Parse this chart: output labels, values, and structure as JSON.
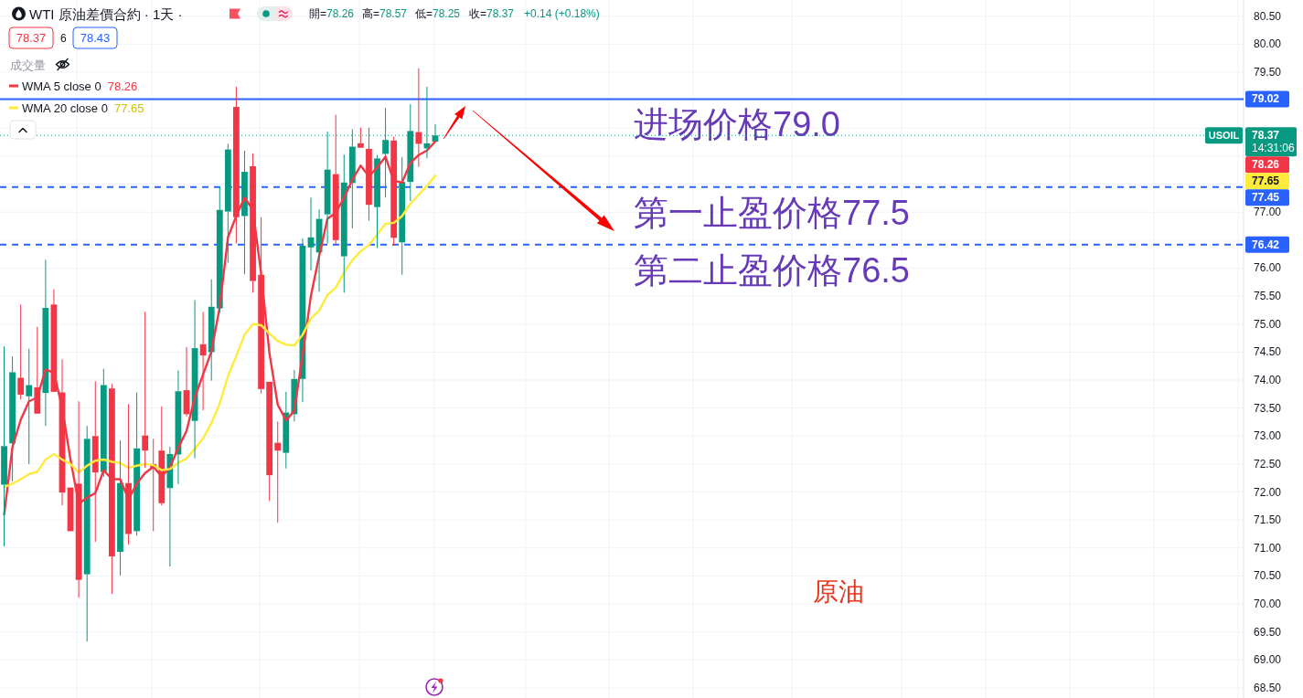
{
  "chart_data": {
    "type": "candlestick",
    "title": "WTI 原油差價合約 · 1天 ·",
    "categories": [
      null,
      null,
      null,
      null,
      null,
      null,
      null,
      null,
      null,
      null,
      null,
      null,
      null,
      null,
      null,
      null,
      null,
      null,
      null,
      null,
      null,
      null,
      null,
      null,
      null,
      null,
      null,
      null,
      null,
      null,
      null,
      null,
      null,
      null,
      null,
      null,
      null,
      null,
      null,
      null,
      null,
      null,
      null,
      null,
      null,
      null,
      null,
      null,
      null,
      null,
      null,
      null,
      null,
      null,
      null,
      null,
      null,
      null,
      null,
      null,
      null,
      null,
      null,
      null,
      null,
      null,
      null,
      null,
      null,
      null,
      null,
      null,
      null,
      null,
      null,
      null,
      null,
      null,
      null,
      null,
      null,
      null,
      null,
      null,
      null,
      null,
      null,
      null,
      null,
      null,
      null,
      null,
      null,
      null,
      null,
      null,
      null,
      null,
      null,
      null,
      null,
      null,
      null,
      null,
      null,
      null,
      null,
      null,
      null,
      null,
      null,
      null,
      null,
      null,
      null,
      null,
      null,
      null,
      null,
      null,
      null,
      null,
      null,
      null,
      null,
      null,
      null,
      null,
      null,
      null,
      null,
      null,
      null,
      null,
      null,
      null,
      null,
      null,
      null,
      null,
      null,
      null,
      null,
      null,
      null,
      null,
      null,
      null,
      null,
      null
    ],
    "ohlc": [
      [
        72.13,
        74.6,
        71.03,
        72.82
      ],
      [
        72.87,
        74.42,
        72.19,
        74.14
      ],
      [
        74.04,
        75.35,
        73.65,
        73.74
      ],
      [
        73.71,
        74.56,
        72.5,
        73.91
      ],
      [
        73.87,
        74.95,
        73.4,
        73.4
      ],
      [
        73.77,
        76.15,
        73.18,
        75.29
      ],
      [
        75.35,
        75.62,
        73.79,
        73.79
      ],
      [
        73.78,
        74.37,
        71.76,
        71.99
      ],
      [
        72.08,
        72.08,
        71.3,
        71.3
      ],
      [
        72.15,
        73.62,
        70.11,
        70.43
      ],
      [
        70.53,
        73.18,
        69.33,
        72.95
      ],
      [
        73.0,
        73.98,
        71.11,
        72.35
      ],
      [
        72.36,
        74.2,
        72.27,
        73.91
      ],
      [
        73.85,
        73.93,
        70.18,
        70.85
      ],
      [
        70.93,
        72.92,
        70.51,
        72.16
      ],
      [
        72.16,
        73.57,
        71.06,
        71.25
      ],
      [
        71.3,
        73.78,
        71.22,
        72.78
      ],
      [
        73.01,
        75.22,
        72.43,
        72.74
      ],
      [
        72.5,
        72.95,
        71.3,
        72.42
      ],
      [
        72.74,
        73.53,
        71.76,
        71.8
      ],
      [
        72.07,
        72.81,
        70.67,
        72.68
      ],
      [
        72.67,
        74.17,
        72.14,
        73.8
      ],
      [
        73.82,
        74.59,
        73.35,
        73.39
      ],
      [
        73.27,
        75.43,
        72.6,
        74.57
      ],
      [
        74.64,
        75.22,
        73.46,
        74.44
      ],
      [
        74.5,
        75.8,
        73.99,
        75.31
      ],
      [
        75.28,
        77.46,
        75.2,
        77.04
      ],
      [
        77.01,
        78.22,
        76.1,
        78.12
      ],
      [
        78.88,
        79.24,
        76.44,
        76.91
      ],
      [
        76.93,
        78.1,
        75.89,
        77.72
      ],
      [
        77.82,
        78.05,
        75.56,
        75.77
      ],
      [
        75.88,
        76.91,
        73.76,
        73.84
      ],
      [
        73.97,
        73.97,
        71.84,
        72.3
      ],
      [
        72.88,
        73.26,
        71.45,
        72.74
      ],
      [
        72.7,
        73.79,
        72.42,
        73.42
      ],
      [
        73.39,
        74.18,
        73.26,
        74.02
      ],
      [
        74.02,
        76.53,
        73.61,
        76.4
      ],
      [
        76.37,
        77.26,
        75.96,
        76.55
      ],
      [
        76.28,
        77.05,
        75.58,
        76.88
      ],
      [
        76.96,
        78.44,
        76.44,
        77.76
      ],
      [
        77.68,
        78.74,
        76.41,
        76.5
      ],
      [
        76.21,
        78.03,
        75.56,
        77.53
      ],
      [
        77.52,
        78.48,
        76.71,
        78.17
      ],
      [
        78.23,
        78.51,
        78.15,
        78.15
      ],
      [
        78.13,
        78.51,
        76.85,
        77.13
      ],
      [
        77.09,
        78.02,
        76.36,
        77.96
      ],
      [
        78.04,
        78.86,
        77.26,
        78.29
      ],
      [
        78.28,
        78.35,
        76.4,
        76.54
      ],
      [
        76.46,
        77.98,
        75.88,
        77.54
      ],
      [
        77.54,
        78.93,
        77.2,
        78.45
      ],
      [
        78.43,
        79.57,
        77.81,
        78.22
      ],
      [
        78.14,
        79.24,
        77.96,
        78.23
      ],
      [
        78.26,
        78.57,
        78.25,
        78.37
      ],
      null,
      null,
      null,
      null,
      null,
      null,
      null,
      null,
      null,
      null,
      null,
      null,
      null,
      null,
      null,
      null,
      null,
      null,
      null,
      null,
      null,
      null,
      null,
      null,
      null,
      null,
      null,
      null,
      null,
      null,
      null,
      null,
      null,
      null,
      null,
      null,
      null,
      null,
      null,
      null,
      null,
      null,
      null,
      null,
      null,
      null,
      null,
      null,
      null,
      null,
      null,
      null,
      null,
      null,
      null,
      null,
      null,
      null,
      null,
      null,
      null,
      null,
      null,
      null,
      null,
      null,
      null,
      null,
      null,
      null,
      null,
      null,
      null,
      null,
      null,
      null,
      null,
      null,
      null,
      null,
      null,
      null,
      null,
      null,
      null,
      null,
      null,
      null,
      null,
      null,
      null,
      null,
      null,
      null,
      null,
      null,
      null
    ],
    "colors": [
      "#089981",
      "#089981",
      "#f23645",
      "#089981",
      "#f23645",
      "#089981",
      "#f23645",
      "#f23645",
      "#f23645",
      "#f23645",
      "#089981",
      "#f23645",
      "#089981",
      "#f23645",
      "#089981",
      "#f23645",
      "#089981",
      "#f23645",
      "#f23645",
      "#f23645",
      "#089981",
      "#089981",
      "#f23645",
      "#089981",
      "#f23645",
      "#089981",
      "#089981",
      "#089981",
      "#f23645",
      "#089981",
      "#f23645",
      "#f23645",
      "#f23645",
      "#f23645",
      "#089981",
      "#089981",
      "#089981",
      "#089981",
      "#089981",
      "#089981",
      "#f23645",
      "#089981",
      "#089981",
      "#f23645",
      "#f23645",
      "#089981",
      "#089981",
      "#f23645",
      "#089981",
      "#089981",
      "#f23645",
      "#089981",
      "#089981",
      null,
      null,
      null,
      null,
      null,
      null,
      null,
      null,
      null,
      null,
      null,
      null,
      null,
      null,
      null,
      null,
      null,
      null,
      null,
      null,
      null,
      null,
      null,
      null,
      null,
      null,
      null,
      null,
      null,
      null,
      null,
      null,
      null,
      null,
      null,
      null,
      null,
      null,
      null,
      null,
      null,
      null,
      null,
      null,
      null,
      null,
      null,
      null,
      null,
      null,
      null,
      null,
      null,
      null,
      null,
      null,
      null,
      null,
      null,
      null,
      null,
      null,
      null,
      null,
      null,
      null,
      null,
      null,
      null,
      null,
      null,
      null,
      null,
      null,
      null,
      null,
      null,
      null,
      null,
      null,
      null,
      null,
      null,
      null,
      null,
      null,
      null,
      null,
      null,
      null,
      null,
      null,
      null,
      null,
      null,
      null,
      null
    ],
    "series": [
      {
        "name": "WMA 5 close 0",
        "type": "line",
        "color": "#f23645",
        "values": [
          71.6,
          72.8,
          73.29,
          73.62,
          73.69,
          74.19,
          74.13,
          73.51,
          72.58,
          71.79,
          71.9,
          71.98,
          72.39,
          72.23,
          72.23,
          71.87,
          72.15,
          72.34,
          72.45,
          72.28,
          72.44,
          72.79,
          73.09,
          73.69,
          74.1,
          74.51,
          75.3,
          76.55,
          76.93,
          77.26,
          77.04,
          75.9,
          74.48,
          73.56,
          73.28,
          73.45,
          74.45,
          75.5,
          76.22,
          76.88,
          76.99,
          77.26,
          77.58,
          77.83,
          77.64,
          77.8,
          77.99,
          77.56,
          77.53,
          77.88,
          78.02,
          78.1,
          78.26,
          null,
          null,
          null,
          null,
          null,
          null,
          null,
          null,
          null,
          null,
          null,
          null,
          null,
          null,
          null,
          null,
          null,
          null,
          null,
          null,
          null,
          null,
          null,
          null,
          null,
          null,
          null,
          null,
          null,
          null,
          null,
          null,
          null,
          null,
          null,
          null,
          null,
          null,
          null,
          null,
          null,
          null,
          null,
          null,
          null,
          null,
          null,
          null,
          null,
          null,
          null,
          null,
          null,
          null,
          null,
          null,
          null,
          null,
          null,
          null,
          null,
          null,
          null,
          null,
          null,
          null,
          null,
          null,
          null,
          null,
          null,
          null,
          null,
          null,
          null,
          null,
          null,
          null,
          null,
          null,
          null,
          null,
          null,
          null,
          null,
          null,
          null,
          null,
          null,
          null,
          null,
          null,
          null,
          null,
          null,
          null,
          null
        ]
      },
      {
        "name": "WMA 20 close 0",
        "type": "line",
        "color": "#ffeb3b",
        "values": [
          72.09,
          72.15,
          72.23,
          72.32,
          72.36,
          72.58,
          72.68,
          72.58,
          72.5,
          72.35,
          72.47,
          72.56,
          72.58,
          72.54,
          72.52,
          72.43,
          72.47,
          72.5,
          72.48,
          72.39,
          72.41,
          72.52,
          72.6,
          72.77,
          72.96,
          73.23,
          73.58,
          74.07,
          74.43,
          74.81,
          75.0,
          74.98,
          74.83,
          74.7,
          74.63,
          74.62,
          74.81,
          75.1,
          75.24,
          75.52,
          75.65,
          75.92,
          76.14,
          76.3,
          76.41,
          76.6,
          76.79,
          76.81,
          76.93,
          77.15,
          77.31,
          77.47,
          77.65,
          null,
          null,
          null,
          null,
          null,
          null,
          null,
          null,
          null,
          null,
          null,
          null,
          null,
          null,
          null,
          null,
          null,
          null,
          null,
          null,
          null,
          null,
          null,
          null,
          null,
          null,
          null,
          null,
          null,
          null,
          null,
          null,
          null,
          null,
          null,
          null,
          null,
          null,
          null,
          null,
          null,
          null,
          null,
          null,
          null,
          null,
          null,
          null,
          null,
          null,
          null,
          null,
          null,
          null,
          null,
          null,
          null,
          null,
          null,
          null,
          null,
          null,
          null,
          null,
          null,
          null,
          null,
          null,
          null,
          null,
          null,
          null,
          null,
          null,
          null,
          null,
          null,
          null,
          null,
          null,
          null,
          null,
          null,
          null,
          null,
          null,
          null,
          null,
          null,
          null,
          null,
          null,
          null,
          null,
          null,
          null,
          null
        ]
      }
    ],
    "ylim": [
      68.32,
      80.79
    ],
    "yticks": [
      {
        "value": 68.5,
        "label": "68.50"
      },
      {
        "value": 69,
        "label": "69.00"
      },
      {
        "value": 69.5,
        "label": "69.50"
      },
      {
        "value": 70,
        "label": "70.00"
      },
      {
        "value": 70.5,
        "label": "70.50"
      },
      {
        "value": 71,
        "label": "71.00"
      },
      {
        "value": 71.5,
        "label": "71.50"
      },
      {
        "value": 72,
        "label": "72.00"
      },
      {
        "value": 72.5,
        "label": "72.50"
      },
      {
        "value": 73,
        "label": "73.00"
      },
      {
        "value": 73.5,
        "label": "73.50"
      },
      {
        "value": 74,
        "label": "74.00"
      },
      {
        "value": 74.5,
        "label": "74.50"
      },
      {
        "value": 75,
        "label": "75.00"
      },
      {
        "value": 75.5,
        "label": "75.50"
      },
      {
        "value": 76,
        "label": "76.00"
      },
      {
        "value": 76.5,
        "label": null
      },
      {
        "value": 77,
        "label": "77.00"
      },
      {
        "value": 77.5,
        "label": null
      },
      {
        "value": 78,
        "label": null
      },
      {
        "value": 78.5,
        "label": null
      },
      {
        "value": 79,
        "label": null
      },
      {
        "value": 79.5,
        "label": "79.50"
      },
      {
        "value": 80,
        "label": "80.00"
      },
      {
        "value": 80.5,
        "label": "80.50"
      }
    ],
    "grid": true,
    "legend": "top left",
    "tick_labels": "y",
    "ref_lines": [
      {
        "axis": "y",
        "value": 79.02,
        "label": "进场价格79.0",
        "color": "#2962ff",
        "line_style": "solid"
      },
      {
        "axis": "y",
        "value": 77.45,
        "label": "第一止盈价格77.5",
        "color": "#2962ff",
        "line_style": "dashed"
      },
      {
        "axis": "y",
        "value": 76.42,
        "label": "第二止盈价格76.5",
        "color": "#2962ff",
        "line_style": "dashed"
      },
      {
        "axis": "y",
        "value": 78.37,
        "label": "USOIL",
        "color": "#089981",
        "line_style": "dotted"
      }
    ],
    "annotations": [
      "開=78.26",
      "高=78.57",
      "低=78.25",
      "收=78.37",
      "+0.14 (+0.18%)",
      "78.37",
      "6",
      "78.43",
      "成交量",
      "原油",
      "78.26",
      "77.65",
      "78.26",
      "77.65",
      "79.02",
      "77.45",
      "76.42",
      "78.37",
      "14:31:06"
    ]
  }
}
